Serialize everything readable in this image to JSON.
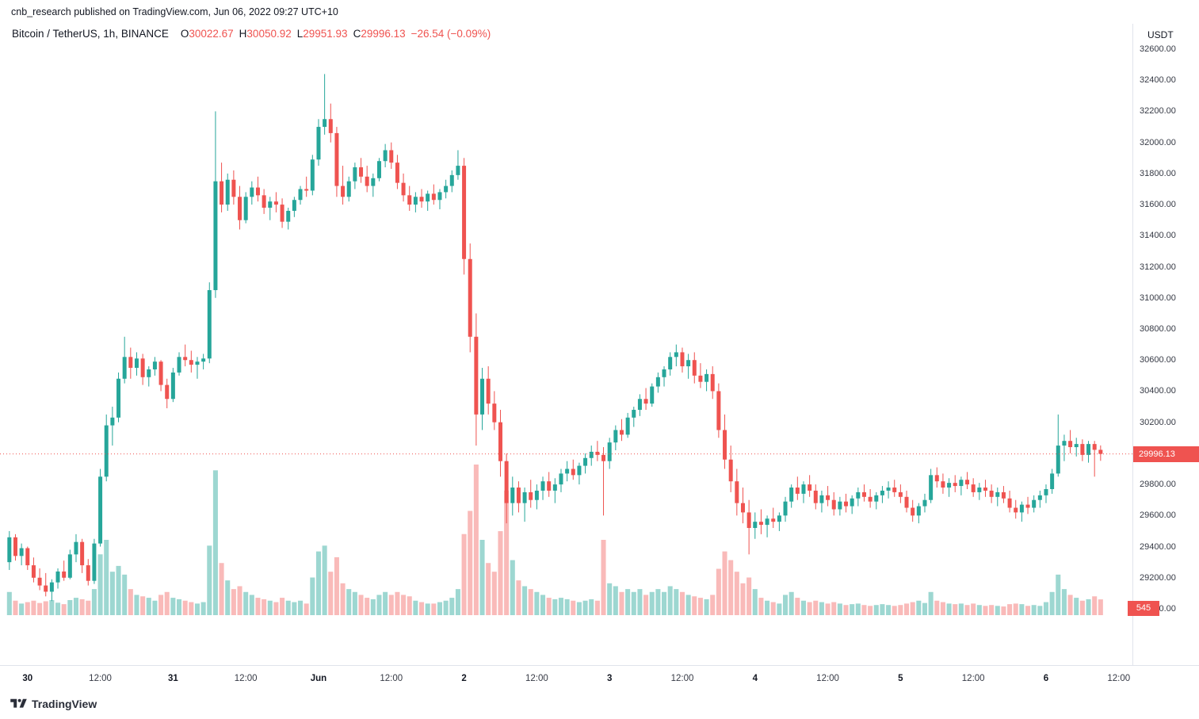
{
  "attribution": {
    "text": "cnb_research published on TradingView.com, Jun 06, 2022 09:27 UTC+10"
  },
  "legend": {
    "symbol": "Bitcoin / TetherUS, 1h, BINANCE",
    "open": {
      "label": "O",
      "value": "30022.67"
    },
    "high": {
      "label": "H",
      "value": "30050.92"
    },
    "low": {
      "label": "L",
      "value": "29951.93"
    },
    "close": {
      "label": "C",
      "value": "29996.13"
    },
    "change": "−26.54 (−0.09%)"
  },
  "price_axis": {
    "currency_label": "USDT",
    "ticks": [
      "32600.00",
      "32400.00",
      "32200.00",
      "32000.00",
      "31800.00",
      "31600.00",
      "31400.00",
      "31200.00",
      "31000.00",
      "30800.00",
      "30600.00",
      "30400.00",
      "30200.00",
      "30000.00",
      "29800.00",
      "29600.00",
      "29400.00",
      "29200.00",
      "29000.00"
    ],
    "last_price_badge": "29996.13",
    "volume_badge": "545"
  },
  "time_axis": {
    "ticks": [
      {
        "label": "30",
        "i": 3,
        "bold": true
      },
      {
        "label": "12:00",
        "i": 15
      },
      {
        "label": "31",
        "i": 27,
        "bold": true
      },
      {
        "label": "12:00",
        "i": 39
      },
      {
        "label": "Jun",
        "i": 51,
        "bold": true
      },
      {
        "label": "12:00",
        "i": 63
      },
      {
        "label": "2",
        "i": 75,
        "bold": true
      },
      {
        "label": "12:00",
        "i": 87
      },
      {
        "label": "3",
        "i": 99,
        "bold": true
      },
      {
        "label": "12:00",
        "i": 111
      },
      {
        "label": "4",
        "i": 123,
        "bold": true
      },
      {
        "label": "12:00",
        "i": 135
      },
      {
        "label": "5",
        "i": 147,
        "bold": true
      },
      {
        "label": "12:00",
        "i": 159
      },
      {
        "label": "6",
        "i": 171,
        "bold": true
      },
      {
        "label": "12:00",
        "i": 183
      }
    ]
  },
  "footer": {
    "brand": "TradingView"
  },
  "colors": {
    "up": "#26a69a",
    "down": "#ef5350",
    "vol_up": "rgba(38,166,154,0.45)",
    "vol_down": "rgba(239,83,80,0.40)",
    "last_price_line": "#ef5350",
    "axis_text": "#363a45",
    "border": "#e0e3eb"
  },
  "chart_data": {
    "type": "candlestick",
    "title": "Bitcoin / TetherUS, 1h, BINANCE",
    "ylabel": "USDT",
    "interval": "1h",
    "start_time": "2022-05-29 21:00",
    "last_price": 29996.13,
    "last_volume": 545,
    "ylim": [
      28900,
      32700
    ],
    "price_tick_step": 200,
    "legend_position": "top-left",
    "grid": false,
    "candles_format": [
      "open",
      "high",
      "low",
      "close",
      "volume"
    ],
    "candles": [
      [
        29300,
        29500,
        29250,
        29460,
        800
      ],
      [
        29460,
        29480,
        29310,
        29340,
        500
      ],
      [
        29340,
        29420,
        29280,
        29390,
        400
      ],
      [
        29390,
        29400,
        29250,
        29280,
        450
      ],
      [
        29280,
        29330,
        29170,
        29200,
        500
      ],
      [
        29200,
        29260,
        29120,
        29150,
        420
      ],
      [
        29150,
        29230,
        29080,
        29110,
        480
      ],
      [
        29110,
        29190,
        29050,
        29170,
        520
      ],
      [
        29170,
        29260,
        29130,
        29240,
        430
      ],
      [
        29240,
        29310,
        29180,
        29200,
        380
      ],
      [
        29200,
        29380,
        29190,
        29350,
        520
      ],
      [
        29350,
        29480,
        29300,
        29430,
        600
      ],
      [
        29430,
        29450,
        29230,
        29280,
        550
      ],
      [
        29280,
        29320,
        29150,
        29180,
        500
      ],
      [
        29180,
        29450,
        29160,
        29420,
        900
      ],
      [
        29420,
        29900,
        29400,
        29850,
        2100
      ],
      [
        29850,
        30250,
        29820,
        30180,
        2600
      ],
      [
        30180,
        30300,
        30050,
        30230,
        1500
      ],
      [
        30230,
        30520,
        30200,
        30480,
        1700
      ],
      [
        30480,
        30750,
        30450,
        30620,
        1400
      ],
      [
        30620,
        30680,
        30480,
        30550,
        900
      ],
      [
        30550,
        30650,
        30500,
        30610,
        700
      ],
      [
        30610,
        30640,
        30440,
        30490,
        650
      ],
      [
        30490,
        30560,
        30430,
        30540,
        600
      ],
      [
        30540,
        30620,
        30500,
        30590,
        500
      ],
      [
        30590,
        30600,
        30400,
        30440,
        700
      ],
      [
        30440,
        30480,
        30290,
        30350,
        800
      ],
      [
        30350,
        30550,
        30330,
        30520,
        600
      ],
      [
        30520,
        30650,
        30500,
        30620,
        550
      ],
      [
        30620,
        30700,
        30560,
        30600,
        500
      ],
      [
        30600,
        30660,
        30520,
        30570,
        450
      ],
      [
        30570,
        30620,
        30480,
        30590,
        400
      ],
      [
        30590,
        30640,
        30540,
        30610,
        450
      ],
      [
        30610,
        31100,
        30580,
        31050,
        2400
      ],
      [
        31050,
        32200,
        31000,
        31750,
        5000
      ],
      [
        31750,
        31870,
        31550,
        31600,
        1800
      ],
      [
        31600,
        31800,
        31560,
        31760,
        1200
      ],
      [
        31760,
        31820,
        31600,
        31650,
        900
      ],
      [
        31650,
        31720,
        31440,
        31500,
        1000
      ],
      [
        31500,
        31680,
        31480,
        31650,
        800
      ],
      [
        31650,
        31750,
        31600,
        31710,
        700
      ],
      [
        31710,
        31780,
        31620,
        31660,
        600
      ],
      [
        31660,
        31700,
        31540,
        31580,
        550
      ],
      [
        31580,
        31650,
        31500,
        31620,
        500
      ],
      [
        31620,
        31680,
        31550,
        31600,
        450
      ],
      [
        31600,
        31640,
        31450,
        31490,
        600
      ],
      [
        31490,
        31580,
        31440,
        31560,
        500
      ],
      [
        31560,
        31650,
        31520,
        31630,
        450
      ],
      [
        31630,
        31720,
        31600,
        31700,
        500
      ],
      [
        31700,
        31780,
        31650,
        31690,
        400
      ],
      [
        31690,
        31920,
        31660,
        31890,
        1300
      ],
      [
        31890,
        32150,
        31850,
        32100,
        2200
      ],
      [
        32100,
        32440,
        32050,
        32150,
        2400
      ],
      [
        32150,
        32250,
        32000,
        32060,
        1500
      ],
      [
        32060,
        32100,
        31650,
        31720,
        2000
      ],
      [
        31720,
        31850,
        31600,
        31650,
        1100
      ],
      [
        31650,
        31780,
        31620,
        31750,
        900
      ],
      [
        31750,
        31870,
        31700,
        31840,
        800
      ],
      [
        31840,
        31900,
        31740,
        31780,
        700
      ],
      [
        31780,
        31850,
        31680,
        31720,
        600
      ],
      [
        31720,
        31800,
        31650,
        31770,
        550
      ],
      [
        31770,
        31900,
        31750,
        31880,
        700
      ],
      [
        31880,
        31990,
        31840,
        31950,
        800
      ],
      [
        31950,
        32000,
        31830,
        31870,
        700
      ],
      [
        31870,
        31920,
        31700,
        31740,
        800
      ],
      [
        31740,
        31800,
        31620,
        31660,
        700
      ],
      [
        31660,
        31720,
        31560,
        31600,
        650
      ],
      [
        31600,
        31680,
        31550,
        31650,
        500
      ],
      [
        31650,
        31700,
        31580,
        31620,
        450
      ],
      [
        31620,
        31690,
        31560,
        31670,
        400
      ],
      [
        31670,
        31730,
        31600,
        31630,
        400
      ],
      [
        31630,
        31700,
        31570,
        31680,
        450
      ],
      [
        31680,
        31760,
        31640,
        31720,
        500
      ],
      [
        31720,
        31820,
        31680,
        31790,
        600
      ],
      [
        31790,
        31950,
        31760,
        31850,
        900
      ],
      [
        31850,
        31900,
        31150,
        31250,
        2800
      ],
      [
        31250,
        31350,
        30650,
        30750,
        3600
      ],
      [
        30750,
        30900,
        30050,
        30250,
        5200
      ],
      [
        30250,
        30550,
        30150,
        30480,
        2600
      ],
      [
        30480,
        30560,
        30250,
        30320,
        1800
      ],
      [
        30320,
        30400,
        30150,
        30200,
        1500
      ],
      [
        30200,
        30280,
        29850,
        29950,
        2900
      ],
      [
        29950,
        30000,
        29550,
        29680,
        4300
      ],
      [
        29680,
        29850,
        29600,
        29780,
        1900
      ],
      [
        29780,
        29820,
        29620,
        29680,
        1200
      ],
      [
        29680,
        29780,
        29560,
        29750,
        1000
      ],
      [
        29750,
        29830,
        29650,
        29700,
        900
      ],
      [
        29700,
        29800,
        29640,
        29760,
        800
      ],
      [
        29760,
        29850,
        29700,
        29820,
        700
      ],
      [
        29820,
        29880,
        29720,
        29760,
        600
      ],
      [
        29760,
        29840,
        29680,
        29800,
        550
      ],
      [
        29800,
        29900,
        29750,
        29870,
        600
      ],
      [
        29870,
        29950,
        29820,
        29900,
        550
      ],
      [
        29900,
        29960,
        29830,
        29860,
        500
      ],
      [
        29860,
        29940,
        29800,
        29920,
        450
      ],
      [
        29920,
        30000,
        29870,
        29970,
        500
      ],
      [
        29970,
        30050,
        29920,
        30010,
        550
      ],
      [
        30010,
        30080,
        29950,
        29990,
        500
      ],
      [
        29990,
        30040,
        29600,
        29950,
        2600
      ],
      [
        29950,
        30100,
        29900,
        30070,
        1100
      ],
      [
        30070,
        30180,
        30020,
        30150,
        1000
      ],
      [
        30150,
        30220,
        30080,
        30120,
        800
      ],
      [
        30120,
        30260,
        30100,
        30230,
        900
      ],
      [
        30230,
        30300,
        30170,
        30280,
        800
      ],
      [
        30280,
        30380,
        30240,
        30350,
        900
      ],
      [
        30350,
        30420,
        30280,
        30320,
        700
      ],
      [
        30320,
        30450,
        30300,
        30430,
        800
      ],
      [
        30430,
        30520,
        30390,
        30490,
        900
      ],
      [
        30490,
        30560,
        30430,
        30540,
        800
      ],
      [
        30540,
        30650,
        30500,
        30620,
        1000
      ],
      [
        30620,
        30700,
        30560,
        30650,
        900
      ],
      [
        30650,
        30680,
        30520,
        30560,
        800
      ],
      [
        30560,
        30640,
        30480,
        30600,
        700
      ],
      [
        30600,
        30650,
        30450,
        30500,
        650
      ],
      [
        30500,
        30580,
        30420,
        30460,
        600
      ],
      [
        30460,
        30540,
        30400,
        30510,
        550
      ],
      [
        30510,
        30560,
        30350,
        30400,
        700
      ],
      [
        30400,
        30450,
        30100,
        30150,
        1600
      ],
      [
        30150,
        30250,
        29900,
        29960,
        2200
      ],
      [
        29960,
        30050,
        29750,
        29820,
        1900
      ],
      [
        29820,
        29900,
        29600,
        29680,
        1500
      ],
      [
        29680,
        29780,
        29550,
        29620,
        1100
      ],
      [
        29620,
        29700,
        29350,
        29520,
        1300
      ],
      [
        29520,
        29620,
        29450,
        29560,
        900
      ],
      [
        29560,
        29640,
        29480,
        29540,
        600
      ],
      [
        29540,
        29600,
        29460,
        29580,
        500
      ],
      [
        29580,
        29650,
        29520,
        29560,
        450
      ],
      [
        29560,
        29620,
        29500,
        29600,
        400
      ],
      [
        29600,
        29720,
        29560,
        29690,
        700
      ],
      [
        29690,
        29800,
        29650,
        29780,
        800
      ],
      [
        29780,
        29850,
        29700,
        29740,
        600
      ],
      [
        29740,
        29820,
        29680,
        29800,
        500
      ],
      [
        29800,
        29860,
        29720,
        29760,
        450
      ],
      [
        29760,
        29800,
        29640,
        29680,
        500
      ],
      [
        29680,
        29760,
        29620,
        29730,
        450
      ],
      [
        29730,
        29790,
        29660,
        29700,
        400
      ],
      [
        29700,
        29750,
        29600,
        29640,
        450
      ],
      [
        29640,
        29720,
        29600,
        29690,
        400
      ],
      [
        29690,
        29740,
        29620,
        29660,
        350
      ],
      [
        29660,
        29730,
        29610,
        29710,
        380
      ],
      [
        29710,
        29780,
        29660,
        29750,
        400
      ],
      [
        29750,
        29800,
        29690,
        29720,
        350
      ],
      [
        29720,
        29770,
        29650,
        29690,
        320
      ],
      [
        29690,
        29750,
        29640,
        29730,
        350
      ],
      [
        29730,
        29790,
        29680,
        29760,
        380
      ],
      [
        29760,
        29820,
        29710,
        29780,
        350
      ],
      [
        29780,
        29830,
        29720,
        29750,
        320
      ],
      [
        29750,
        29800,
        29680,
        29720,
        350
      ],
      [
        29720,
        29760,
        29620,
        29650,
        400
      ],
      [
        29650,
        29700,
        29560,
        29600,
        450
      ],
      [
        29600,
        29680,
        29550,
        29660,
        500
      ],
      [
        29660,
        29740,
        29620,
        29700,
        420
      ],
      [
        29700,
        29900,
        29680,
        29860,
        800
      ],
      [
        29860,
        29910,
        29780,
        29820,
        500
      ],
      [
        29820,
        29870,
        29740,
        29780,
        450
      ],
      [
        29780,
        29840,
        29720,
        29810,
        400
      ],
      [
        29810,
        29860,
        29750,
        29790,
        380
      ],
      [
        29790,
        29850,
        29730,
        29830,
        400
      ],
      [
        29830,
        29880,
        29770,
        29800,
        350
      ],
      [
        29800,
        29840,
        29720,
        29750,
        400
      ],
      [
        29750,
        29810,
        29700,
        29780,
        350
      ],
      [
        29780,
        29830,
        29720,
        29760,
        320
      ],
      [
        29760,
        29800,
        29680,
        29720,
        350
      ],
      [
        29720,
        29780,
        29660,
        29750,
        320
      ],
      [
        29750,
        29790,
        29680,
        29710,
        300
      ],
      [
        29710,
        29760,
        29620,
        29650,
        380
      ],
      [
        29650,
        29700,
        29580,
        29620,
        400
      ],
      [
        29620,
        29690,
        29560,
        29670,
        380
      ],
      [
        29670,
        29720,
        29610,
        29650,
        320
      ],
      [
        29650,
        29730,
        29620,
        29700,
        350
      ],
      [
        29700,
        29760,
        29650,
        29730,
        320
      ],
      [
        29730,
        29800,
        29680,
        29770,
        450
      ],
      [
        29770,
        29900,
        29740,
        29870,
        800
      ],
      [
        29870,
        30250,
        29850,
        30050,
        1400
      ],
      [
        30050,
        30120,
        29950,
        30080,
        900
      ],
      [
        30080,
        30150,
        30000,
        30040,
        700
      ],
      [
        30040,
        30100,
        29980,
        30060,
        600
      ],
      [
        30060,
        30090,
        29950,
        29990,
        500
      ],
      [
        29990,
        30080,
        29940,
        30060,
        550
      ],
      [
        30060,
        30080,
        29850,
        30022.67,
        650
      ],
      [
        30022.67,
        30050.92,
        29951.93,
        29996.13,
        545
      ]
    ]
  }
}
